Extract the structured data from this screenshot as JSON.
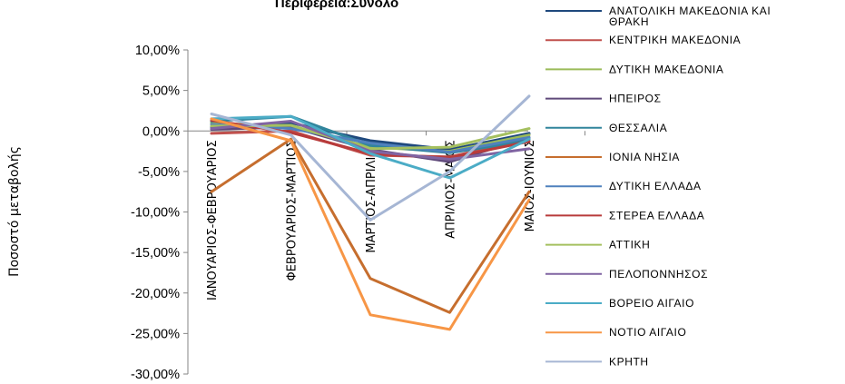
{
  "chart_data": {
    "type": "line",
    "title": "Περιφέρεια:Σύνολο",
    "ylabel": "Ποσοστό μεταβολής",
    "xlabel": "",
    "ylim": [
      -30,
      10
    ],
    "y_ticks": [
      "10,00%",
      "5,00%",
      "0,00%",
      "-5,00%",
      "-10,00%",
      "-15,00%",
      "-20,00%",
      "-25,00%",
      "-30,00%"
    ],
    "categories": [
      "ΙΑΝΟΥΑΡΙΟΣ-ΦΕΒΡΟΥΑΡΙΟΣ",
      "ΦΕΒΡΟΥΑΡΙΟΣ-ΜΑΡΤΙΟΣ",
      "ΜΑΡΤΙΟΣ-ΑΠΡΙΛΙΟΣ",
      "ΑΠΡΙΛΙΟΣ-ΜΑΙΟΣ",
      "ΜΑΙΟΣ-ΙΟΥΝΙΟΣ"
    ],
    "grid": false,
    "legend_position": "right",
    "series": [
      {
        "name": "ΑΝΑΤΟΛΙΚΗ ΜΑΚΕΔΟΝΙΑ ΚΑΙ ΘΡΑΚΗ",
        "color": "#1F497D",
        "values": [
          0.5,
          1.0,
          -1.2,
          -2.3,
          -0.3
        ]
      },
      {
        "name": "ΚΕΝΤΡΙΚΗ ΜΑΚΕΔΟΝΙΑ",
        "color": "#C0504D",
        "values": [
          -0.3,
          0.0,
          -3.0,
          -3.2,
          -1.0
        ]
      },
      {
        "name": "ΔΥΤΙΚΗ ΜΑΚΕΔΟΝΙΑ",
        "color": "#9BBB59",
        "values": [
          1.0,
          0.5,
          -2.0,
          -2.5,
          -0.5
        ]
      },
      {
        "name": "ΗΠΕΙΡΟΣ",
        "color": "#5F497A",
        "values": [
          0.2,
          0.5,
          -2.3,
          -3.8,
          -0.8
        ]
      },
      {
        "name": "ΘΕΣΣΑΛΙΑ",
        "color": "#31859C",
        "values": [
          1.2,
          1.8,
          -1.8,
          -2.7,
          -1.2
        ]
      },
      {
        "name": "ΙΟΝΙΑ ΝΗΣΙΑ",
        "color": "#C66E2E",
        "values": [
          -7.5,
          -1.0,
          -18.2,
          -22.4,
          -7.5
        ]
      },
      {
        "name": "ΔΥΤΙΚΗ ΕΛΛΑΔΑ",
        "color": "#4F81BD",
        "values": [
          0.8,
          0.3,
          -1.5,
          -2.6,
          -0.8
        ]
      },
      {
        "name": "ΣΤΕΡΕΑ ΕΛΛΑΔΑ",
        "color": "#B83B3B",
        "values": [
          1.3,
          -0.2,
          -2.8,
          -3.3,
          -1.3
        ]
      },
      {
        "name": "ΑΤΤΙΚΗ",
        "color": "#A5C05F",
        "values": [
          0.6,
          0.7,
          -2.2,
          -2.0,
          0.3
        ]
      },
      {
        "name": "ΠΕΛΟΠΟΝΝΗΣΟΣ",
        "color": "#8064A2",
        "values": [
          0.3,
          1.2,
          -2.5,
          -3.5,
          -2.2
        ]
      },
      {
        "name": "ΒΟΡΕΙΟ ΑΙΓΑΙΟ",
        "color": "#4BACC6",
        "values": [
          1.5,
          1.8,
          -2.8,
          -5.8,
          -1.0
        ]
      },
      {
        "name": "ΝΟΤΙΟ ΑΙΓΑΙΟ",
        "color": "#F79646",
        "values": [
          1.5,
          -1.2,
          -22.7,
          -24.5,
          -8.5
        ]
      },
      {
        "name": "ΚΡΗΤΗ",
        "color": "#A6B6D4",
        "values": [
          2.1,
          -0.5,
          -11.0,
          -5.0,
          4.3
        ]
      }
    ]
  }
}
